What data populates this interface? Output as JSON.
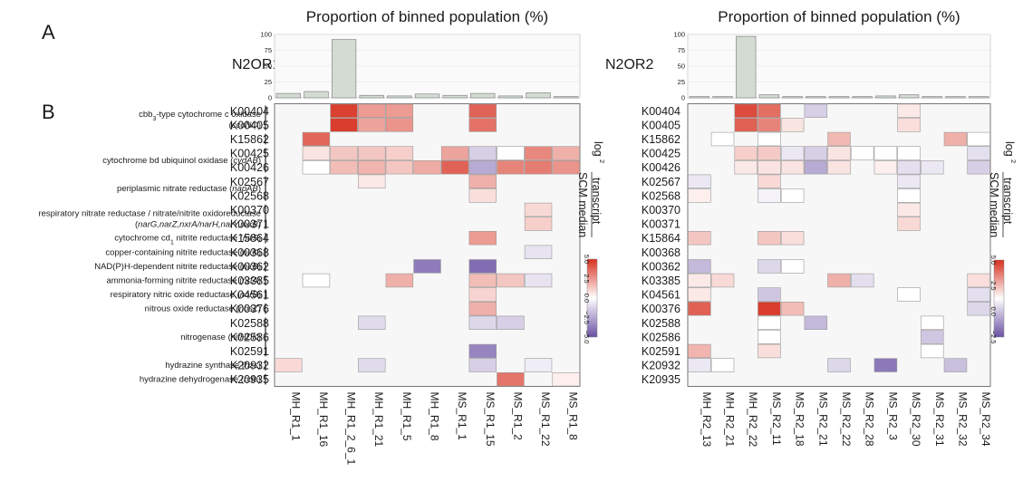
{
  "figure": {
    "panel_a_label": "A",
    "panel_b_label": "B",
    "bar_title": "Proportion of binned population (%)",
    "ylabel_top": "log",
    "ylabel_sub": "2",
    "ylabel_numerator": "transcript",
    "ylabel_denominator": "SCM median"
  },
  "colors": {
    "positive": "#d7301f",
    "neutral": "#ffffff",
    "negative": "#6a51a3",
    "bar_fill": "#d3dbd3",
    "panel_bg": "#f7f7f7"
  },
  "genes": [
    {
      "rows": [
        "K00404",
        "K00405"
      ],
      "prefix": "cbb",
      "sub": "3",
      "text": "-type cytochrome c oxidase",
      "abbr": "ccoNO"
    },
    {
      "rows": [
        "K15862"
      ],
      "text": ""
    },
    {
      "rows": [
        "K00425",
        "K00426"
      ],
      "text": "cytochrome bd ubiquinol oxidase",
      "abbr": "cydAB"
    },
    {
      "rows": [
        "K02567",
        "K02568"
      ],
      "text": "periplasmic nitrate reductase",
      "abbr": "napAB"
    },
    {
      "rows": [
        "K00370",
        "K00371"
      ],
      "text": "respiratory nitrate reductase / nitrate/nitrite oxidoreductase",
      "abbr": "narG,narZ,nxrA/narH,narY,nxrB"
    },
    {
      "rows": [
        "K15864"
      ],
      "prefix": "cytochrome cd",
      "sub": "1",
      "text": " nitrite reductase",
      "abbr": "nirS"
    },
    {
      "rows": [
        "K00368"
      ],
      "text": "copper-containing nitrite reductase",
      "abbr": "nirK"
    },
    {
      "rows": [
        "K00362"
      ],
      "text": "NAD(P)H-dependent nitrite reductase",
      "abbr": "nirB"
    },
    {
      "rows": [
        "K03385"
      ],
      "text": "ammonia-forming nitrite reductase",
      "abbr": "nrfA"
    },
    {
      "rows": [
        "K04561"
      ],
      "text": "respiratory nitric oxide reductase",
      "abbr": "norB"
    },
    {
      "rows": [
        "K00376"
      ],
      "text": "nitrous oxide reductase",
      "abbr": "nosZ"
    },
    {
      "rows": [
        "K02588",
        "K02586",
        "K02591"
      ],
      "text": "nitrogenase",
      "abbr": "nifHDK"
    },
    {
      "rows": [
        "K20932"
      ],
      "text": "hydrazine synthase",
      "abbr": "hzs"
    },
    {
      "rows": [
        "K20935"
      ],
      "text": "hydrazine dehydrogenase",
      "abbr": "hdh"
    }
  ],
  "chart_data": [
    {
      "name": "N2OR1",
      "type": "heatmap",
      "rows": [
        "K00404",
        "K00405",
        "K15862",
        "K00425",
        "K00426",
        "K02567",
        "K02568",
        "K00370",
        "K00371",
        "K15864",
        "K00368",
        "K00362",
        "K03385",
        "K04561",
        "K00376",
        "K02588",
        "K02586",
        "K02591",
        "K20932",
        "K20935"
      ],
      "columns": [
        "MH_R1_1",
        "MH_R1_16",
        "MH_R1_2_6_1",
        "MH_R1_21",
        "MH_R1_5",
        "MH_R1_8",
        "MS_R1_1",
        "MS_R1_15",
        "MS_R1_2",
        "MS_R1_22",
        "MS_R1_8"
      ],
      "proportion_pct": [
        7,
        10,
        92,
        4,
        3,
        6,
        4,
        7,
        3,
        8,
        2
      ],
      "bar_yticks": [
        0,
        25,
        50,
        75,
        100
      ],
      "bar_ylim": [
        0,
        100
      ],
      "color_range": [
        -5,
        5
      ],
      "colorbar_ticks": [
        "5.0",
        "2.5",
        "0.0",
        "−2.5",
        "−5.0"
      ],
      "values": [
        [
          null,
          null,
          4.5,
          2.0,
          2.0,
          null,
          null,
          3.5,
          null,
          null,
          null
        ],
        [
          null,
          null,
          4.6,
          1.8,
          2.2,
          null,
          null,
          3.1,
          null,
          null,
          null
        ],
        [
          null,
          3.4,
          null,
          null,
          null,
          null,
          null,
          null,
          null,
          null,
          null
        ],
        [
          null,
          0.4,
          1.0,
          1.0,
          0.8,
          null,
          1.8,
          -1.0,
          0.0,
          2.5,
          1.5
        ],
        [
          null,
          0.0,
          1.2,
          1.4,
          1.0,
          1.6,
          3.5,
          -2.0,
          2.6,
          2.8,
          2.2
        ],
        [
          null,
          null,
          null,
          0.3,
          null,
          null,
          null,
          1.5,
          null,
          null,
          null
        ],
        [
          null,
          null,
          null,
          null,
          null,
          null,
          null,
          0.5,
          null,
          null,
          null
        ],
        [
          null,
          null,
          null,
          null,
          null,
          null,
          null,
          null,
          null,
          0.6,
          null
        ],
        [
          null,
          null,
          null,
          null,
          null,
          null,
          null,
          null,
          null,
          0.8,
          null
        ],
        [
          null,
          null,
          null,
          null,
          null,
          null,
          null,
          2.0,
          null,
          null,
          null
        ],
        [
          null,
          null,
          null,
          null,
          null,
          null,
          null,
          null,
          null,
          -0.5,
          null
        ],
        [
          null,
          null,
          null,
          null,
          null,
          -3.5,
          null,
          -4.0,
          null,
          null,
          null
        ],
        [
          null,
          0.0,
          null,
          null,
          1.5,
          null,
          null,
          1.2,
          1.0,
          -0.5,
          null
        ],
        [
          null,
          null,
          null,
          null,
          null,
          null,
          null,
          0.7,
          null,
          null,
          null
        ],
        [
          null,
          null,
          null,
          null,
          null,
          null,
          null,
          1.5,
          null,
          null,
          null
        ],
        [
          null,
          null,
          null,
          -0.7,
          null,
          null,
          null,
          -0.8,
          -1.0,
          null,
          null
        ],
        [
          null,
          null,
          null,
          null,
          null,
          null,
          null,
          null,
          null,
          null,
          null
        ],
        [
          null,
          null,
          null,
          null,
          null,
          null,
          null,
          -3.2,
          null,
          null,
          null
        ],
        [
          0.6,
          null,
          null,
          -0.7,
          null,
          null,
          null,
          -1.0,
          null,
          -0.3,
          null
        ],
        [
          null,
          null,
          null,
          null,
          null,
          null,
          null,
          null,
          3.0,
          null,
          0.2
        ]
      ]
    },
    {
      "name": "N2OR2",
      "type": "heatmap",
      "rows": [
        "K00404",
        "K00405",
        "K15862",
        "K00425",
        "K00426",
        "K02567",
        "K02568",
        "K00370",
        "K00371",
        "K15864",
        "K00368",
        "K00362",
        "K03385",
        "K04561",
        "K00376",
        "K02588",
        "K02586",
        "K02591",
        "K20932",
        "K20935"
      ],
      "columns": [
        "MH_R2_13",
        "MH_R2_21",
        "MH_R2_22",
        "MS_R2_11",
        "MS_R2_18",
        "MS_R2_21",
        "MS_R2_22",
        "MS_R2_28",
        "MS_R2_3",
        "MS_R2_30",
        "MS_R2_31",
        "MS_R2_32",
        "MS_R2_34"
      ],
      "proportion_pct": [
        2,
        2,
        97,
        5,
        2,
        2,
        2,
        2,
        3,
        5,
        2,
        2,
        2
      ],
      "bar_yticks": [
        0,
        25,
        50,
        75,
        100
      ],
      "bar_ylim": [
        0,
        100
      ],
      "color_range": [
        -2.5,
        5
      ],
      "colorbar_ticks": [
        "5.0",
        "2.5",
        "0.0",
        "−2.5"
      ],
      "values": [
        [
          null,
          null,
          4.2,
          3.2,
          null,
          -0.5,
          null,
          null,
          null,
          0.3,
          null,
          null,
          null
        ],
        [
          null,
          null,
          3.6,
          2.6,
          0.4,
          null,
          null,
          null,
          null,
          0.5,
          null,
          null,
          null
        ],
        [
          null,
          0.0,
          null,
          0.0,
          null,
          null,
          1.3,
          null,
          null,
          null,
          null,
          1.5,
          0.0
        ],
        [
          null,
          null,
          0.8,
          0.9,
          -0.2,
          -0.5,
          0.4,
          0.0,
          0.0,
          0.0,
          null,
          null,
          -0.3
        ],
        [
          null,
          null,
          0.3,
          0.4,
          0.4,
          -1.0,
          0.4,
          null,
          0.2,
          -0.3,
          -0.2,
          null,
          -0.5
        ],
        [
          -0.2,
          null,
          null,
          0.6,
          null,
          null,
          null,
          null,
          null,
          -0.2,
          null,
          null,
          null
        ],
        [
          0.2,
          null,
          null,
          -0.1,
          0.0,
          null,
          null,
          null,
          null,
          0.0,
          null,
          null,
          null
        ],
        [
          null,
          null,
          null,
          null,
          null,
          null,
          null,
          null,
          null,
          0.3,
          null,
          null,
          null
        ],
        [
          null,
          null,
          null,
          null,
          null,
          null,
          null,
          null,
          null,
          0.6,
          null,
          null,
          null
        ],
        [
          1.0,
          null,
          null,
          1.0,
          0.5,
          null,
          null,
          null,
          null,
          null,
          null,
          null,
          null
        ],
        [
          null,
          null,
          null,
          null,
          null,
          null,
          null,
          null,
          null,
          null,
          null,
          null,
          null
        ],
        [
          -0.8,
          null,
          null,
          -0.4,
          0.0,
          null,
          null,
          null,
          null,
          null,
          null,
          null,
          null
        ],
        [
          0.3,
          0.6,
          null,
          null,
          null,
          null,
          1.5,
          -0.3,
          null,
          null,
          null,
          null,
          0.5
        ],
        [
          0.3,
          null,
          null,
          -0.6,
          null,
          null,
          null,
          null,
          null,
          0.0,
          null,
          null,
          -0.3
        ],
        [
          3.6,
          null,
          null,
          4.6,
          1.2,
          null,
          null,
          null,
          null,
          null,
          null,
          null,
          -0.4
        ],
        [
          null,
          null,
          null,
          0.0,
          null,
          -0.8,
          null,
          null,
          null,
          null,
          0.0,
          null,
          null
        ],
        [
          null,
          null,
          null,
          0.0,
          null,
          null,
          null,
          null,
          null,
          null,
          -0.6,
          null,
          null
        ],
        [
          1.4,
          null,
          null,
          0.5,
          null,
          null,
          null,
          null,
          null,
          null,
          0.0,
          null,
          null
        ],
        [
          -0.2,
          0.0,
          null,
          null,
          null,
          null,
          -0.4,
          null,
          -1.8,
          null,
          null,
          -0.7,
          null
        ],
        [
          null,
          null,
          null,
          null,
          null,
          null,
          null,
          null,
          null,
          null,
          null,
          null,
          null
        ]
      ]
    }
  ]
}
